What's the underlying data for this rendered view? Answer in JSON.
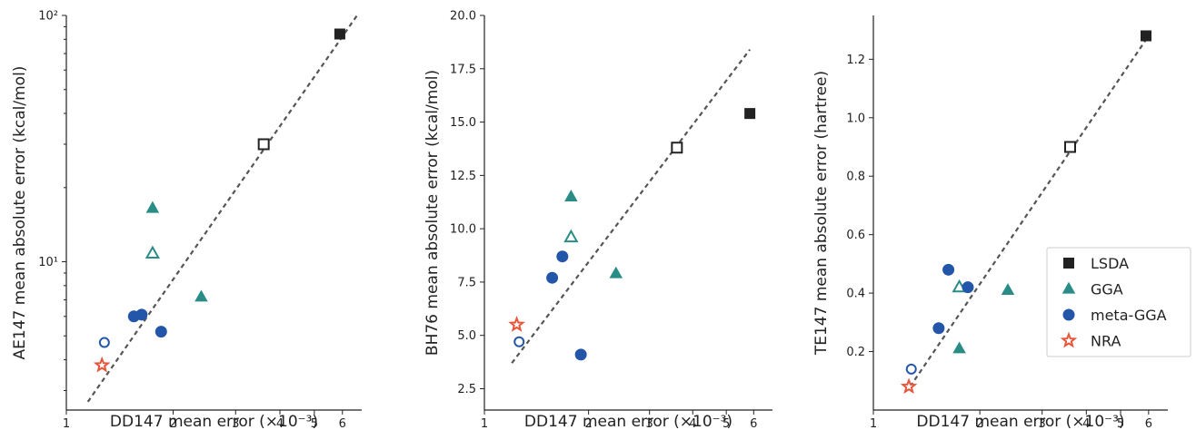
{
  "colors": {
    "LSDA": "#222222",
    "GGA": "#2a8c86",
    "meta-GGA": "#2356a8",
    "NRA": "#e8553a",
    "fit": "#555555"
  },
  "legend": {
    "placement": "lower-right of third panel",
    "entries": [
      {
        "name": "LSDA",
        "marker": "square",
        "color": "#222222"
      },
      {
        "name": "GGA",
        "marker": "triangle",
        "color": "#2a8c86"
      },
      {
        "name": "meta-GGA",
        "marker": "circle",
        "color": "#2356a8"
      },
      {
        "name": "NRA",
        "marker": "star",
        "color": "#e8553a"
      }
    ]
  },
  "chart_data": [
    {
      "type": "scatter",
      "xlabel": "DD147 mean error (×10⁻³)",
      "ylabel": "AE147 mean absolute error (kcal/mol)",
      "xscale": "log",
      "yscale": "log",
      "xlim": [
        1,
        6.8
      ],
      "ylim": [
        2.5,
        100
      ],
      "xticks": [
        {
          "v": 1,
          "label": "1"
        },
        {
          "v": 2,
          "label": "2"
        },
        {
          "v": 3,
          "label": "3"
        },
        {
          "v": 4,
          "label": "4"
        },
        {
          "v": 5,
          "label": "5"
        },
        {
          "v": 6,
          "label": "6"
        }
      ],
      "yticks": [
        {
          "v": 10,
          "label": "10¹"
        },
        {
          "v": 100,
          "label": "10²"
        }
      ],
      "fit_line": [
        [
          1.15,
          2.7
        ],
        [
          6.6,
          100
        ]
      ],
      "points": [
        {
          "series": "LSDA",
          "marker": "square",
          "filled": true,
          "x": 5.9,
          "y": 84
        },
        {
          "series": "LSDA",
          "marker": "square",
          "filled": false,
          "x": 3.6,
          "y": 30
        },
        {
          "series": "GGA",
          "marker": "triangle",
          "filled": true,
          "x": 1.75,
          "y": 16.5
        },
        {
          "series": "GGA",
          "marker": "triangle",
          "filled": false,
          "x": 1.75,
          "y": 10.8
        },
        {
          "series": "GGA",
          "marker": "triangle",
          "filled": true,
          "x": 2.4,
          "y": 7.2
        },
        {
          "series": "meta-GGA",
          "marker": "circle",
          "filled": true,
          "x": 1.55,
          "y": 6.0
        },
        {
          "series": "meta-GGA",
          "marker": "circle",
          "filled": true,
          "x": 1.63,
          "y": 6.1
        },
        {
          "series": "meta-GGA",
          "marker": "circle",
          "filled": true,
          "x": 1.85,
          "y": 5.2
        },
        {
          "series": "meta-GGA",
          "marker": "circle",
          "filled": false,
          "x": 1.28,
          "y": 4.7
        },
        {
          "series": "NRA",
          "marker": "star",
          "filled": false,
          "x": 1.26,
          "y": 3.8
        }
      ]
    },
    {
      "type": "scatter",
      "xlabel": "DD147 mean error (×10⁻³)",
      "ylabel": "BH76 mean absolute error (kcal/mol)",
      "xscale": "log",
      "yscale": "linear",
      "xlim": [
        1,
        6.8
      ],
      "ylim": [
        1.5,
        20
      ],
      "xticks": [
        {
          "v": 1,
          "label": "1"
        },
        {
          "v": 2,
          "label": "2"
        },
        {
          "v": 3,
          "label": "3"
        },
        {
          "v": 4,
          "label": "4"
        },
        {
          "v": 5,
          "label": "5"
        },
        {
          "v": 6,
          "label": "6"
        }
      ],
      "yticks": [
        {
          "v": 2.5,
          "label": "2.5"
        },
        {
          "v": 5.0,
          "label": "5.0"
        },
        {
          "v": 7.5,
          "label": "7.5"
        },
        {
          "v": 10.0,
          "label": "10.0"
        },
        {
          "v": 12.5,
          "label": "12.5"
        },
        {
          "v": 15.0,
          "label": "15.0"
        },
        {
          "v": 17.5,
          "label": "17.5"
        },
        {
          "v": 20.0,
          "label": "20.0"
        }
      ],
      "fit_line": [
        [
          1.2,
          3.7
        ],
        [
          5.85,
          18.4
        ]
      ],
      "points": [
        {
          "series": "LSDA",
          "marker": "square",
          "filled": true,
          "x": 5.85,
          "y": 15.4
        },
        {
          "series": "LSDA",
          "marker": "square",
          "filled": false,
          "x": 3.6,
          "y": 13.8
        },
        {
          "series": "GGA",
          "marker": "triangle",
          "filled": true,
          "x": 1.78,
          "y": 11.5
        },
        {
          "series": "GGA",
          "marker": "triangle",
          "filled": false,
          "x": 1.78,
          "y": 9.6
        },
        {
          "series": "GGA",
          "marker": "triangle",
          "filled": true,
          "x": 2.4,
          "y": 7.9
        },
        {
          "series": "meta-GGA",
          "marker": "circle",
          "filled": true,
          "x": 1.68,
          "y": 8.7
        },
        {
          "series": "meta-GGA",
          "marker": "circle",
          "filled": true,
          "x": 1.57,
          "y": 7.7
        },
        {
          "series": "meta-GGA",
          "marker": "circle",
          "filled": true,
          "x": 1.9,
          "y": 4.1
        },
        {
          "series": "meta-GGA",
          "marker": "circle",
          "filled": false,
          "x": 1.26,
          "y": 4.7
        },
        {
          "series": "NRA",
          "marker": "star",
          "filled": false,
          "x": 1.24,
          "y": 5.5
        }
      ]
    },
    {
      "type": "scatter",
      "xlabel": "DD147 mean error (×10⁻³)",
      "ylabel": "TE147 mean absolute error (hartree)",
      "xscale": "log",
      "yscale": "linear",
      "xlim": [
        1,
        6.8
      ],
      "ylim": [
        0.0,
        1.35
      ],
      "xticks": [
        {
          "v": 1,
          "label": "1"
        },
        {
          "v": 2,
          "label": "2"
        },
        {
          "v": 3,
          "label": "3"
        },
        {
          "v": 4,
          "label": "4"
        },
        {
          "v": 5,
          "label": "5"
        },
        {
          "v": 6,
          "label": "6"
        }
      ],
      "yticks": [
        {
          "v": 0.2,
          "label": "0.2"
        },
        {
          "v": 0.4,
          "label": "0.4"
        },
        {
          "v": 0.6,
          "label": "0.6"
        },
        {
          "v": 0.8,
          "label": "0.8"
        },
        {
          "v": 1.0,
          "label": "1.0"
        },
        {
          "v": 1.2,
          "label": "1.2"
        }
      ],
      "fit_line": [
        [
          1.27,
          0.08
        ],
        [
          6.0,
          1.28
        ]
      ],
      "points": [
        {
          "series": "LSDA",
          "marker": "square",
          "filled": true,
          "x": 5.9,
          "y": 1.28
        },
        {
          "series": "LSDA",
          "marker": "square",
          "filled": false,
          "x": 3.6,
          "y": 0.9
        },
        {
          "series": "GGA",
          "marker": "triangle",
          "filled": false,
          "x": 1.75,
          "y": 0.42
        },
        {
          "series": "GGA",
          "marker": "triangle",
          "filled": true,
          "x": 2.4,
          "y": 0.41
        },
        {
          "series": "GGA",
          "marker": "triangle",
          "filled": true,
          "x": 1.75,
          "y": 0.21
        },
        {
          "series": "meta-GGA",
          "marker": "circle",
          "filled": true,
          "x": 1.63,
          "y": 0.48
        },
        {
          "series": "meta-GGA",
          "marker": "circle",
          "filled": true,
          "x": 1.85,
          "y": 0.42
        },
        {
          "series": "meta-GGA",
          "marker": "circle",
          "filled": true,
          "x": 1.53,
          "y": 0.28
        },
        {
          "series": "meta-GGA",
          "marker": "circle",
          "filled": false,
          "x": 1.28,
          "y": 0.14
        },
        {
          "series": "NRA",
          "marker": "star",
          "filled": false,
          "x": 1.26,
          "y": 0.08
        }
      ]
    }
  ]
}
